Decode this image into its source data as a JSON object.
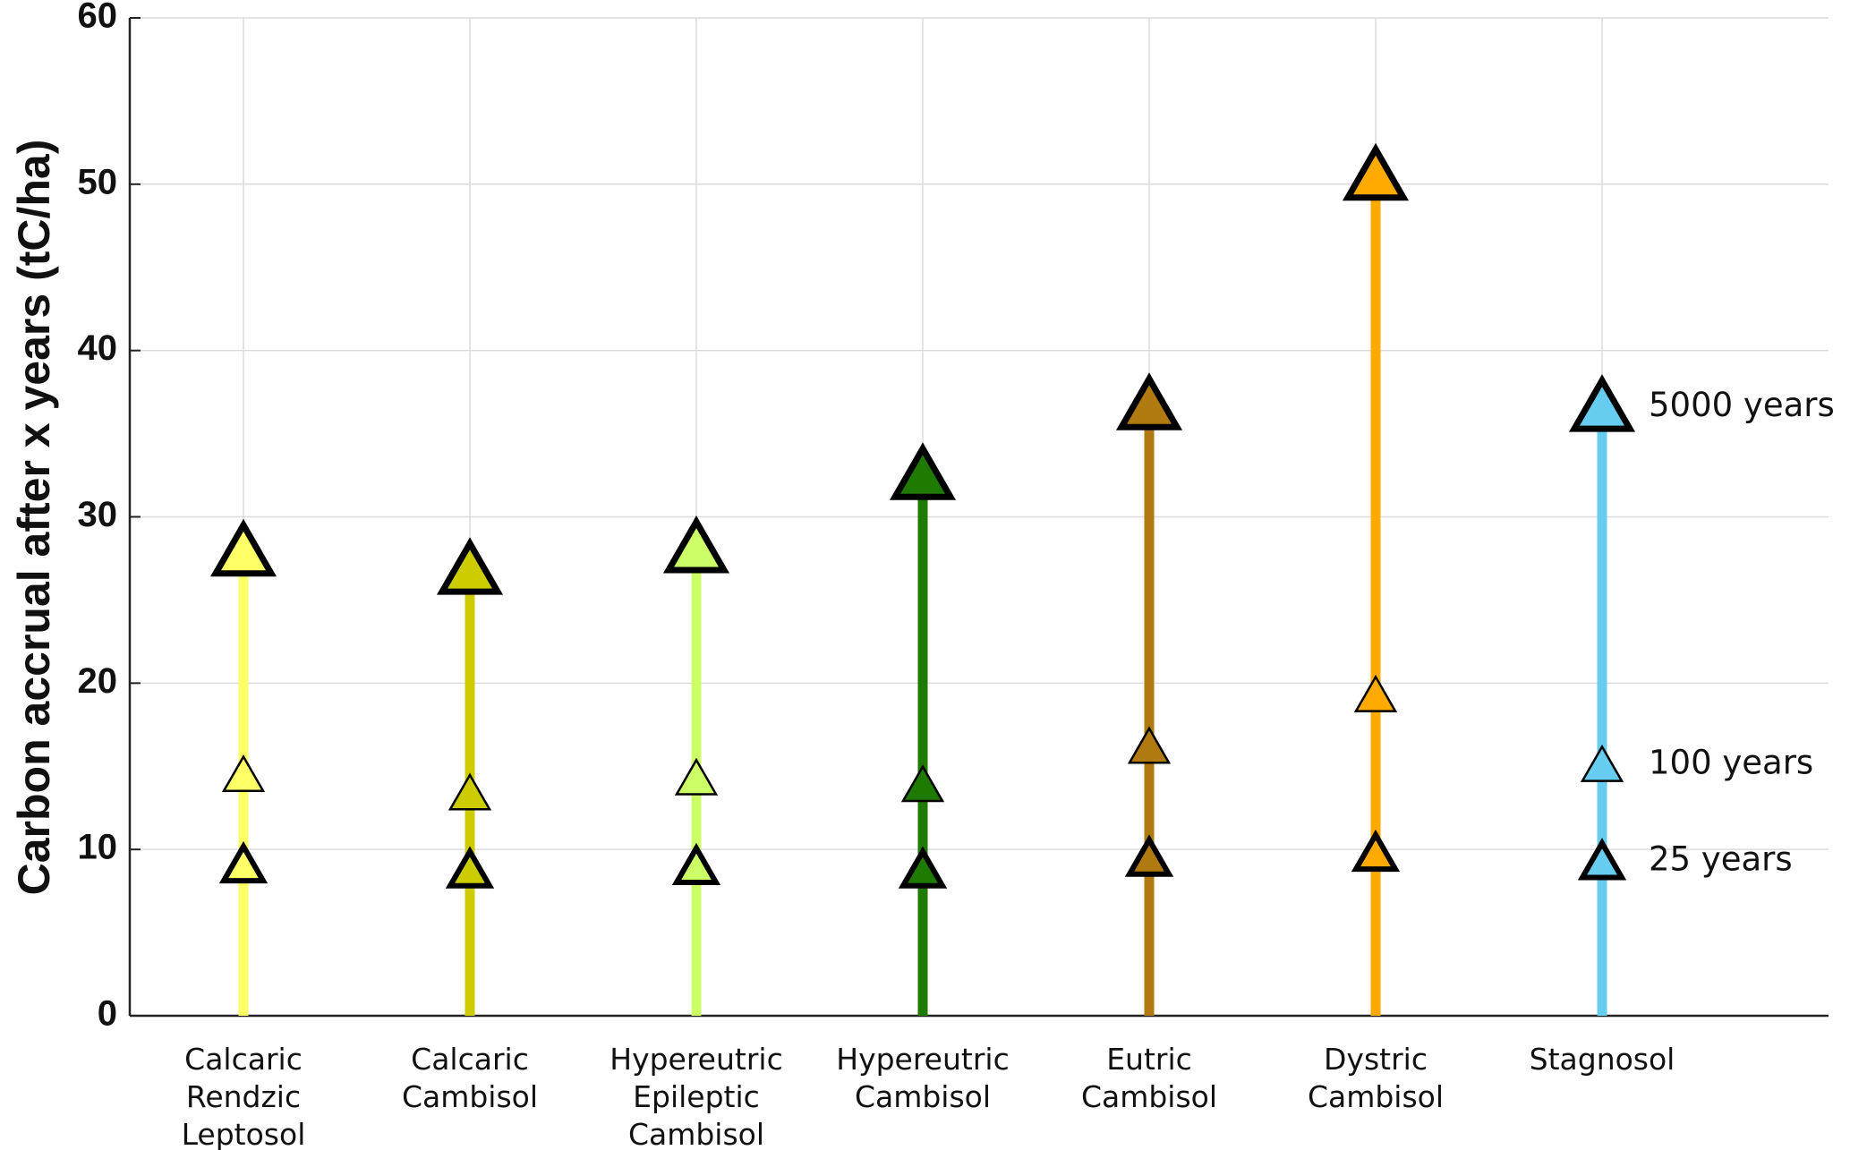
{
  "chart_data": {
    "type": "lollipop",
    "y_label": "Carbon accrual after x years (tC/ha)",
    "categories": [
      "Calcaric Rendzic Leptosol",
      "Calcaric Cambisol",
      "Hypereutric Epileptic Cambisol",
      "Hypereutric Cambisol",
      "Eutric Cambisol",
      "Dystric Cambisol",
      "Stagnosol"
    ],
    "colors": [
      "#ffff66",
      "#cccc00",
      "#ccff66",
      "#1f7a00",
      "#b07a10",
      "#ffaa00",
      "#66ccf0"
    ],
    "series": [
      {
        "name": "25 years",
        "values": [
          8.9,
          8.6,
          8.8,
          8.6,
          9.3,
          9.6,
          9.1
        ]
      },
      {
        "name": "100 years",
        "values": [
          14.3,
          13.2,
          14.1,
          13.7,
          16.0,
          19.1,
          14.9
        ]
      },
      {
        "name": "5000 years",
        "values": [
          27.7,
          26.6,
          27.9,
          32.3,
          36.5,
          50.3,
          36.4
        ]
      }
    ],
    "ylim": [
      0,
      60
    ],
    "yticks": [
      0,
      10,
      20,
      30,
      40,
      50,
      60
    ],
    "grid": true
  }
}
